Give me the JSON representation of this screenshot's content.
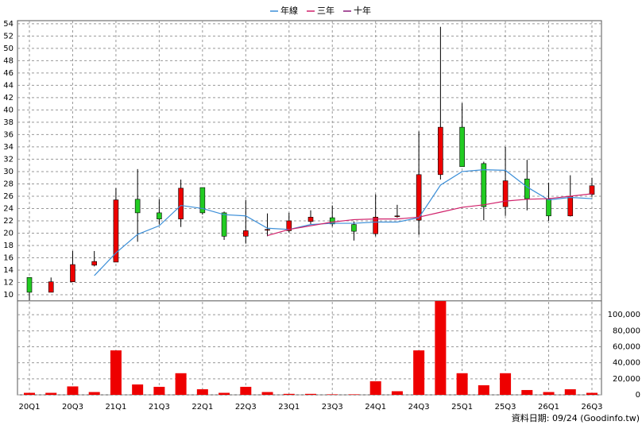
{
  "chart_data": {
    "type": "candlestick",
    "categories": [
      "20Q1",
      null,
      "20Q3",
      null,
      "21Q1",
      null,
      "21Q3",
      null,
      "22Q1",
      null,
      "22Q3",
      null,
      "23Q1",
      null,
      "23Q3",
      null,
      "24Q1",
      null,
      "24Q3",
      null,
      "25Q1",
      null,
      "25Q3",
      null,
      "26Q1",
      null,
      "26Q3"
    ],
    "open": [
      12.8,
      10.4,
      12.1,
      14.8,
      15.3,
      25.5,
      23.3,
      22.3,
      27.4,
      23.3,
      19.5,
      20.5,
      20.4,
      21.9,
      22.5,
      21.4,
      19.9,
      22.7,
      22.1,
      29.5,
      37.2,
      31.3,
      24.3,
      28.8,
      25.5,
      22.8,
      26.3
    ],
    "high": [
      12.8,
      12.8,
      17.1,
      17.1,
      27.3,
      30.4,
      25.5,
      28.7,
      27.4,
      23.5,
      25.4,
      23.2,
      23.3,
      23.7,
      24.5,
      21.9,
      26.3,
      24.6,
      36.5,
      53.5,
      41.1,
      31.6,
      34.0,
      31.9,
      28.2,
      29.4,
      29.0
    ],
    "low": [
      9.1,
      10.4,
      12.1,
      14.6,
      15.3,
      18.6,
      21.4,
      21.0,
      23.0,
      18.9,
      18.3,
      19.5,
      20.1,
      21.5,
      21.1,
      18.8,
      19.5,
      22.5,
      19.7,
      28.7,
      30.8,
      22.1,
      22.8,
      23.7,
      22.0,
      22.7,
      25.9
    ],
    "close": [
      10.4,
      12.1,
      14.9,
      15.4,
      25.4,
      23.3,
      22.3,
      27.3,
      23.3,
      19.5,
      20.4,
      20.6,
      22.0,
      22.6,
      21.5,
      20.3,
      22.6,
      22.8,
      29.5,
      37.2,
      30.8,
      24.3,
      28.5,
      25.6,
      22.8,
      26.0,
      27.7
    ],
    "up_color": "#ee0000",
    "down_color": "#22cc22",
    "series": [
      {
        "name": "年線",
        "color": "#3c8fd8",
        "values": [
          null,
          null,
          null,
          13.1,
          16.8,
          19.8,
          21.2,
          24.5,
          24.0,
          23.0,
          22.8,
          20.8,
          20.6,
          21.4,
          21.6,
          21.6,
          21.8,
          21.8,
          22.5,
          27.8,
          30.0,
          30.3,
          30.2,
          27.5,
          25.4,
          25.8,
          25.6
        ]
      },
      {
        "name": "三年",
        "color": "#d0206a",
        "values": [
          null,
          null,
          null,
          null,
          null,
          null,
          null,
          null,
          null,
          null,
          null,
          19.6,
          20.6,
          21.2,
          21.8,
          22.2,
          22.3,
          22.3,
          22.6,
          23.4,
          24.2,
          24.6,
          25.2,
          25.5,
          25.6,
          26.0,
          26.4
        ]
      },
      {
        "name": "十年",
        "color": "#8b1a7a",
        "values": [
          null,
          null,
          null,
          null,
          null,
          null,
          null,
          null,
          null,
          null,
          null,
          null,
          null,
          null,
          null,
          null,
          null,
          null,
          null,
          null,
          null,
          null,
          null,
          null,
          null,
          null,
          null
        ]
      }
    ],
    "ylim": [
      9,
      54.5
    ],
    "yticks": [
      10,
      12,
      14,
      16,
      18,
      20,
      22,
      24,
      26,
      28,
      30,
      32,
      34,
      36,
      38,
      40,
      42,
      44,
      46,
      48,
      50,
      52,
      54
    ],
    "grid": true,
    "volume": {
      "color": "#ee0000",
      "values": [
        2500,
        2500,
        10500,
        3500,
        55500,
        13000,
        10000,
        27000,
        7000,
        2500,
        10000,
        3500,
        1200,
        1200,
        600,
        600,
        17000,
        4500,
        55500,
        117000,
        27000,
        12000,
        27000,
        6000,
        3500,
        7000,
        2500
      ],
      "ylim": [
        0,
        120000
      ],
      "yticks": [
        0,
        {
          "value": 20000,
          "label": "20,000"
        },
        {
          "value": 40000,
          "label": "40,000"
        },
        {
          "value": 60000,
          "label": "60,000"
        },
        {
          "value": 80000,
          "label": "80,000"
        },
        {
          "value": 100000,
          "label": "100,000"
        }
      ]
    },
    "footer": "資料日期: 09/24  (Goodinfo.tw)"
  }
}
